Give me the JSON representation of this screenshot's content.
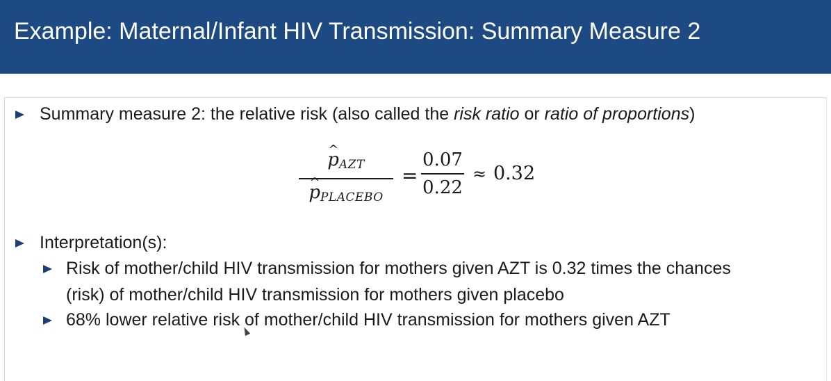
{
  "slide": {
    "title": "Example: Maternal/Infant HIV Transmission: Summary Measure 2",
    "bullet1": {
      "text_before": "Summary measure 2: the relative risk (also called the ",
      "em1": "risk ratio",
      "text_mid": " or ",
      "em2": "ratio of proportions",
      "text_after": ")"
    },
    "formula": {
      "num_symbol": "p",
      "num_subscript": "AZT",
      "den_symbol": "p",
      "den_subscript": "PLACEBO",
      "equals": "=",
      "value_num": "0.07",
      "value_den": "0.22",
      "approx": "≈",
      "result": "0.32"
    },
    "bullet2": {
      "label": "Interpretation(s):",
      "sub_items": [
        {
          "line1": "Risk of mother/child HIV transmission for mothers given AZT is 0.32 times the chances",
          "line2": "(risk) of mother/child HIV transmission for mothers given placebo"
        },
        {
          "line1": "68% lower relative risk of mother/child HIV transmission for mothers given AZT"
        }
      ]
    },
    "colors": {
      "title_bar": "#1d4a82",
      "bullet_triangle": "#1d3f73",
      "title_text": "#ffffff"
    }
  }
}
